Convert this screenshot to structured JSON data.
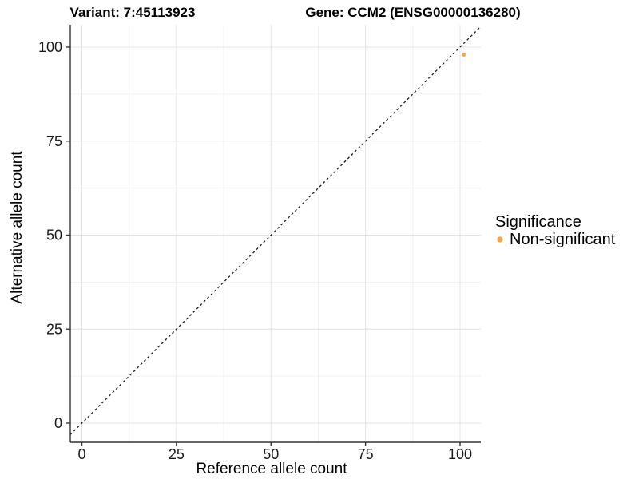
{
  "chart_data": {
    "type": "scatter",
    "titles": {
      "variant": "Variant: 7:45113923",
      "gene": "Gene: CCM2 (ENSG00000136280)"
    },
    "xlabel": "Reference allele count",
    "ylabel": "Alternative allele count",
    "x_ticks": [
      0,
      25,
      50,
      75,
      100
    ],
    "y_ticks": [
      0,
      25,
      50,
      75,
      100
    ],
    "x_minor_ticks": [
      12.5,
      37.5,
      62.5,
      87.5
    ],
    "y_minor_ticks": [
      12.5,
      37.5,
      62.5,
      87.5
    ],
    "xlim": [
      -3,
      105.5
    ],
    "ylim": [
      -5,
      106
    ],
    "grid": true,
    "series": [
      {
        "name": "Non-significant",
        "points": [
          {
            "x": 101,
            "y": 98
          }
        ]
      }
    ],
    "identity_line": {
      "equation": "y = x",
      "style": "dashed"
    },
    "legend": {
      "title": "Significance",
      "position": "right",
      "items": [
        {
          "label": "Non-significant",
          "color": "#F8A33C"
        }
      ]
    },
    "colors": {
      "point": "#F8A33C",
      "grid_major": "#E3E3E3",
      "grid_minor": "#F1F1F1",
      "axis_line": "#333333",
      "tick_mark": "#333333",
      "identity_line": "#1A1A1A",
      "background": "#FFFFFF"
    }
  }
}
